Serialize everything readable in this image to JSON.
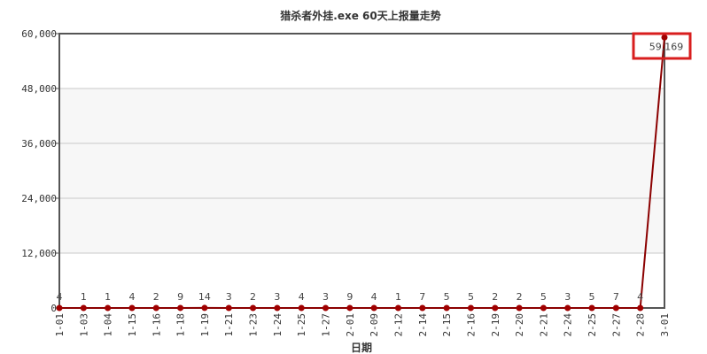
{
  "chart_data": {
    "type": "line",
    "title": "猎杀者外挂.exe 60天上报量走势",
    "xlabel": "日期",
    "ylabel": "",
    "ylim": [
      0,
      60000
    ],
    "yticks": [
      0,
      12000,
      24000,
      36000,
      48000,
      60000
    ],
    "ytick_labels": [
      "0",
      "12,000",
      "24,000",
      "36,000",
      "48,000",
      "60,000"
    ],
    "grid": true,
    "categories": [
      "1-01",
      "1-03",
      "1-04",
      "1-15",
      "1-16",
      "1-18",
      "1-19",
      "1-21",
      "1-23",
      "1-24",
      "1-25",
      "1-27",
      "2-01",
      "2-09",
      "2-12",
      "2-14",
      "2-15",
      "2-16",
      "2-19",
      "2-20",
      "2-21",
      "2-24",
      "2-25",
      "2-27",
      "2-28",
      "3-01"
    ],
    "values": [
      4,
      1,
      1,
      4,
      2,
      9,
      14,
      3,
      2,
      3,
      4,
      3,
      9,
      4,
      1,
      7,
      5,
      5,
      2,
      2,
      5,
      3,
      5,
      7,
      4,
      59169
    ],
    "data_labels": [
      "4",
      "1",
      "1",
      "4",
      "2",
      "9",
      "14",
      "3",
      "2",
      "3",
      "4",
      "3",
      "9",
      "4",
      "1",
      "7",
      "5",
      "5",
      "2",
      "2",
      "5",
      "3",
      "5",
      "7",
      "4",
      "59,169"
    ],
    "colors": {
      "line": "#8b0000",
      "marker": "#a00000",
      "highlight_box": "#d81e1e"
    }
  }
}
